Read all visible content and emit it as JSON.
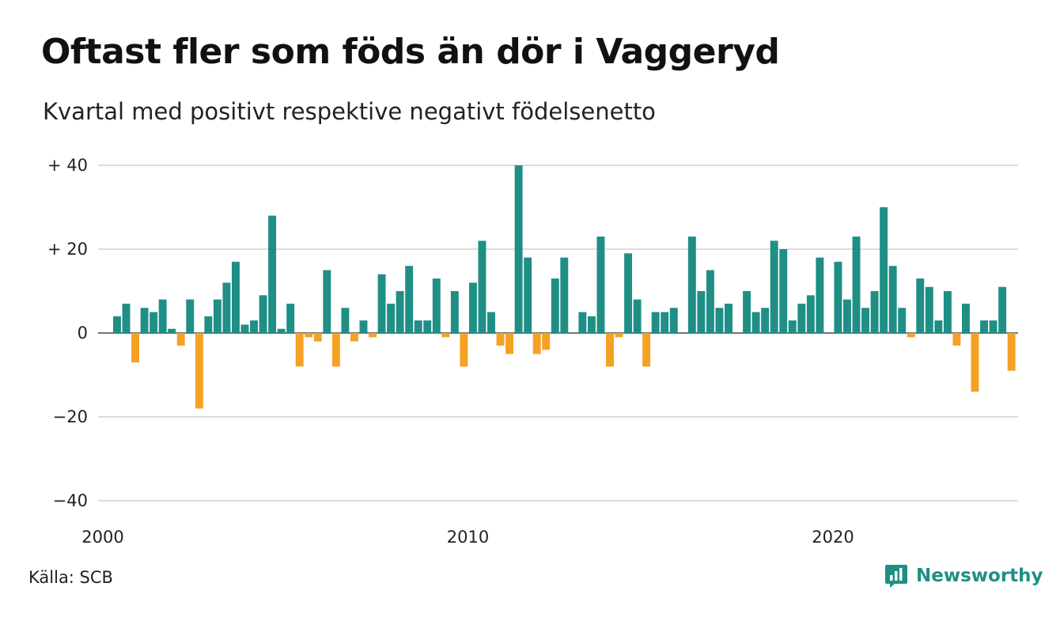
{
  "title": "Oftast fler som föds än dör i Vaggeryd",
  "subtitle": "Kvartal med positivt respektive negativt födelsenetto",
  "source": "Källa: SCB",
  "brand": {
    "name": "Newsworthy",
    "icon": "bar-chart-icon",
    "color": "#1f8f86"
  },
  "chart_data": {
    "type": "bar",
    "colors": {
      "positive": "#1f8f86",
      "negative": "#f5a123",
      "grid": "#dddddd"
    },
    "ylim": [
      -40,
      40
    ],
    "y_ticks": [
      {
        "value": 40,
        "label": "+ 40"
      },
      {
        "value": 20,
        "label": "+ 20"
      },
      {
        "value": 0,
        "label": "0"
      },
      {
        "value": -20,
        "label": "−20"
      },
      {
        "value": -40,
        "label": "−40"
      }
    ],
    "x_ticks": [
      {
        "value": 2000,
        "label": "2000"
      },
      {
        "value": 2010,
        "label": "2010"
      },
      {
        "value": 2020,
        "label": "2020"
      }
    ],
    "x_start": 2000.0,
    "quarter_step": 0.25,
    "values": [
      4,
      7,
      -7,
      6,
      5,
      8,
      1,
      -3,
      8,
      -18,
      4,
      8,
      12,
      17,
      2,
      3,
      9,
      28,
      1,
      7,
      -8,
      -1,
      -2,
      15,
      -8,
      6,
      -2,
      3,
      -1,
      14,
      7,
      10,
      16,
      3,
      3,
      13,
      -1,
      10,
      -8,
      12,
      22,
      5,
      -3,
      -5,
      40,
      18,
      -5,
      -4,
      13,
      18,
      0,
      5,
      4,
      23,
      -8,
      -1,
      19,
      8,
      -8,
      5,
      5,
      6,
      0,
      23,
      10,
      15,
      6,
      7,
      0,
      10,
      5,
      6,
      22,
      20,
      3,
      7,
      9,
      18,
      0,
      17,
      8,
      23,
      6,
      10,
      30,
      16,
      6,
      -1,
      13,
      11,
      3,
      10,
      -3,
      7,
      -14,
      3,
      3,
      11,
      -9
    ]
  }
}
